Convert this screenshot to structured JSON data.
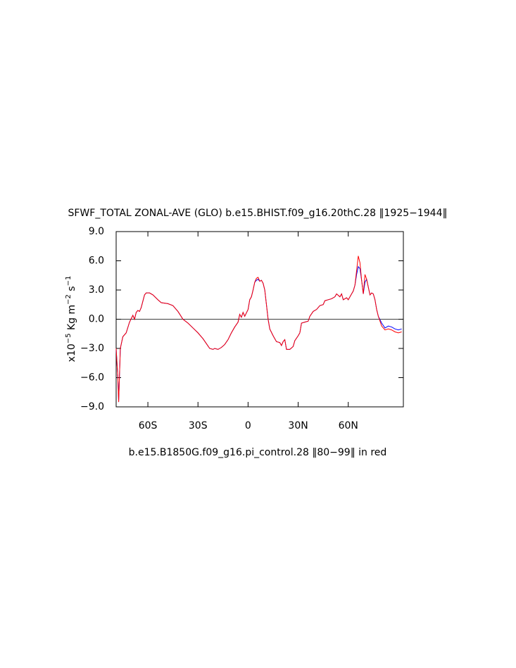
{
  "chart_data": {
    "type": "line",
    "title": "SFWF_TOTAL ZONAL-AVE (GLO) b.e15.BHIST.f09_g16.20thC.28 ‖1925−1944‖",
    "subtitle": "b.e15.B1850G.f09_g16.pi_control.28 ‖80−99‖ in red",
    "ylabel": [
      "x10",
      "−5",
      " Kg m",
      "−2",
      " s",
      "−1"
    ],
    "x": [
      -79,
      -78,
      -77.5,
      -76.5,
      -75,
      -73,
      -71,
      -69,
      -68,
      -67,
      -66,
      -65,
      -64,
      -62,
      -61,
      -59,
      -57,
      -54,
      -52,
      -48,
      -45,
      -42,
      -39,
      -36,
      -33,
      -30,
      -27,
      -25,
      -23,
      -21,
      -20,
      -18,
      -16,
      -14,
      -12,
      -10,
      -8,
      -6,
      -5,
      -4,
      -3,
      -2,
      0,
      1,
      2,
      3,
      4,
      5,
      6,
      7,
      8,
      9,
      10,
      11,
      12,
      13,
      15,
      17,
      19,
      20,
      21,
      22,
      23,
      25,
      27,
      28,
      30,
      31,
      32,
      34,
      36,
      37,
      39,
      41,
      43,
      45,
      46,
      48,
      50,
      52,
      53,
      55,
      56,
      57,
      59,
      60,
      62,
      63,
      64,
      65,
      66,
      67,
      68,
      69,
      70,
      71,
      72,
      73,
      74,
      75,
      76,
      77,
      78,
      80,
      82,
      84,
      86,
      88,
      90,
      92
    ],
    "series": [
      {
        "color": "#0000ff",
        "values": [
          -3.0,
          -6.0,
          -8.5,
          -3.0,
          -1.8,
          -1.4,
          -0.3,
          0.4,
          0.0,
          0.7,
          0.9,
          0.8,
          1.2,
          2.5,
          2.7,
          2.7,
          2.5,
          2.0,
          1.7,
          1.6,
          1.4,
          0.8,
          0.0,
          -0.4,
          -0.9,
          -1.4,
          -2.0,
          -2.5,
          -3.0,
          -3.1,
          -3.0,
          -3.1,
          -2.9,
          -2.6,
          -2.1,
          -1.4,
          -0.8,
          -0.3,
          0.5,
          0.2,
          0.7,
          0.3,
          1.0,
          2.0,
          2.3,
          3.0,
          3.8,
          4.0,
          4.1,
          3.9,
          4.0,
          3.7,
          3.0,
          1.5,
          0.0,
          -1.0,
          -1.7,
          -2.3,
          -2.4,
          -2.7,
          -2.3,
          -2.1,
          -3.1,
          -3.1,
          -2.8,
          -2.2,
          -1.7,
          -1.4,
          -0.4,
          -0.3,
          -0.2,
          0.3,
          0.8,
          1.0,
          1.4,
          1.5,
          1.9,
          2.0,
          2.1,
          2.3,
          2.6,
          2.3,
          2.6,
          2.0,
          2.2,
          2.0,
          2.6,
          2.9,
          3.5,
          4.6,
          5.4,
          5.2,
          4.0,
          2.6,
          3.8,
          4.1,
          3.3,
          2.5,
          2.7,
          2.6,
          2.0,
          1.0,
          0.3,
          -0.4,
          -0.9,
          -0.7,
          -0.8,
          -1.0,
          -1.1,
          -1.0
        ]
      },
      {
        "color": "#ff0000",
        "values": [
          -3.0,
          -6.0,
          -8.5,
          -3.0,
          -1.8,
          -1.4,
          -0.3,
          0.4,
          0.0,
          0.7,
          0.9,
          0.8,
          1.2,
          2.5,
          2.7,
          2.7,
          2.5,
          2.0,
          1.7,
          1.6,
          1.4,
          0.8,
          0.0,
          -0.4,
          -0.9,
          -1.4,
          -2.0,
          -2.5,
          -3.0,
          -3.1,
          -3.0,
          -3.1,
          -2.9,
          -2.6,
          -2.1,
          -1.4,
          -0.8,
          -0.3,
          0.5,
          0.2,
          0.7,
          0.3,
          1.0,
          2.0,
          2.3,
          3.0,
          3.8,
          4.2,
          4.3,
          3.9,
          4.0,
          3.7,
          3.0,
          1.5,
          0.0,
          -1.0,
          -1.7,
          -2.3,
          -2.4,
          -2.7,
          -2.3,
          -2.1,
          -3.1,
          -3.1,
          -2.8,
          -2.2,
          -1.7,
          -1.4,
          -0.4,
          -0.3,
          -0.2,
          0.3,
          0.8,
          1.0,
          1.4,
          1.5,
          1.9,
          2.0,
          2.1,
          2.3,
          2.6,
          2.3,
          2.6,
          2.0,
          2.2,
          2.0,
          2.6,
          2.9,
          3.5,
          5.0,
          6.5,
          5.8,
          4.0,
          2.6,
          4.6,
          4.1,
          3.3,
          2.5,
          2.7,
          2.6,
          2.0,
          1.0,
          0.3,
          -0.7,
          -1.1,
          -1.0,
          -1.1,
          -1.3,
          -1.4,
          -1.3
        ]
      }
    ],
    "xlim": [
      -79,
      93
    ],
    "ylim": [
      -9,
      9
    ],
    "xticks": [
      {
        "value": -60,
        "label": "60S"
      },
      {
        "value": -30,
        "label": "30S"
      },
      0,
      {
        "value": 30,
        "label": "30N"
      },
      {
        "value": 60,
        "label": "60N"
      }
    ],
    "yticks": [
      {
        "value": 9,
        "label": "9.0"
      },
      {
        "value": 6,
        "label": "6.0"
      },
      {
        "value": 3,
        "label": "3.0"
      },
      {
        "value": 0,
        "label": "0.0"
      },
      {
        "value": -3,
        "label": "−3.0"
      },
      {
        "value": -6,
        "label": "−6.0"
      },
      {
        "value": -9,
        "label": "−9.0"
      }
    ],
    "hline": 0
  }
}
